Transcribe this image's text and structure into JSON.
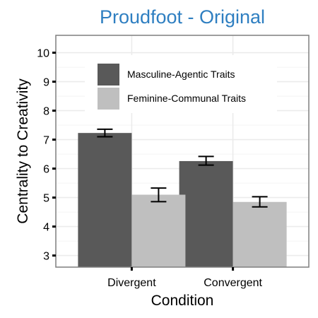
{
  "chart_data": {
    "type": "bar",
    "title": "Proudfoot - Original",
    "xlabel": "Condition",
    "ylabel": "Centrality to Creativity",
    "categories": [
      "Divergent",
      "Convergent"
    ],
    "ylim": [
      2.6,
      10.6
    ],
    "yticks": [
      3,
      4,
      5,
      6,
      7,
      8,
      9,
      10
    ],
    "grid": true,
    "legend_position": "top-left",
    "series": [
      {
        "name": "Masculine-Agentic Traits",
        "color": "#595959",
        "values": [
          7.23,
          6.26
        ],
        "error_low": [
          7.1,
          6.12
        ],
        "error_high": [
          7.36,
          6.42
        ]
      },
      {
        "name": "Feminine-Communal Traits",
        "color": "#bfbfbf",
        "values": [
          5.1,
          4.85
        ],
        "error_low": [
          4.86,
          4.68
        ],
        "error_high": [
          5.33,
          5.03
        ]
      }
    ]
  },
  "colors": {
    "title": "#2f7fc1",
    "panel_border": "#7f7f7f",
    "major_grid": "#ebebeb",
    "minor_grid": "#f4f4f4",
    "error_bar": "#000000"
  }
}
